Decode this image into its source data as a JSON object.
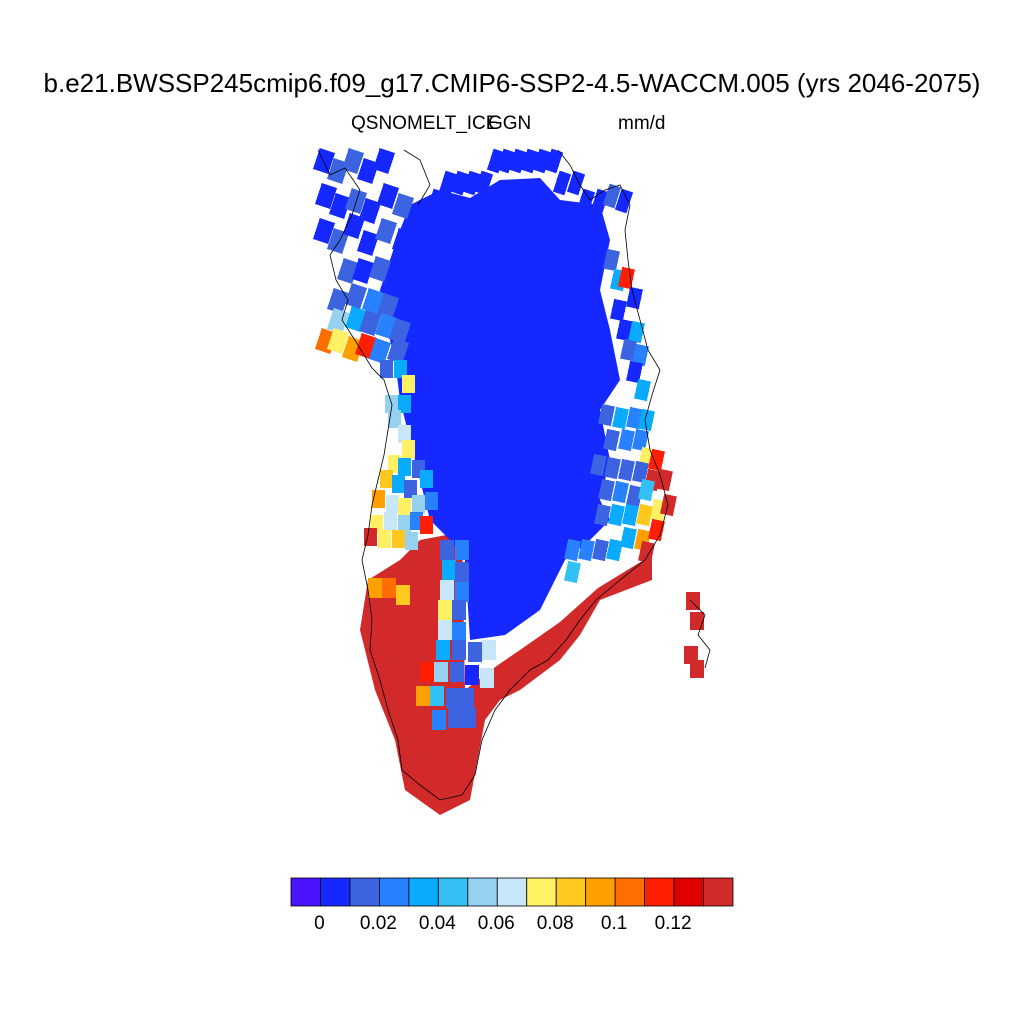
{
  "title": "b.e21.BWSSP245cmip6.f09_g17.CMIP6-SSP2-4.5-WACCM.005 (yrs 2046-2075)",
  "subtitle_left": "QSNOMELT_ICE",
  "subtitle_center": "GGN",
  "subtitle_right": "mm/d",
  "colorbar": {
    "colors": [
      "#4b14ff",
      "#1428ff",
      "#3c64e1",
      "#2882ff",
      "#0aaaff",
      "#32c0f5",
      "#96d2f0",
      "#c8e6fa",
      "#fff064",
      "#ffc81e",
      "#ffa000",
      "#ff6e00",
      "#ff1e00",
      "#e10000",
      "#d22a2a"
    ],
    "tick_labels": [
      "0",
      "0.02",
      "0.04",
      "0.06",
      "0.08",
      "0.1",
      "0.12"
    ],
    "tick_values": [
      0,
      0.02,
      0.04,
      0.06,
      0.08,
      0.1,
      0.12
    ]
  },
  "map": {
    "region": "Greenland",
    "variable": "QSNOMELT_ICE",
    "units": "mm/d",
    "value_pattern": {
      "interior": 0.0,
      "southwest_and_southeast_margins": 0.14,
      "coastal_north": 0.01
    }
  }
}
